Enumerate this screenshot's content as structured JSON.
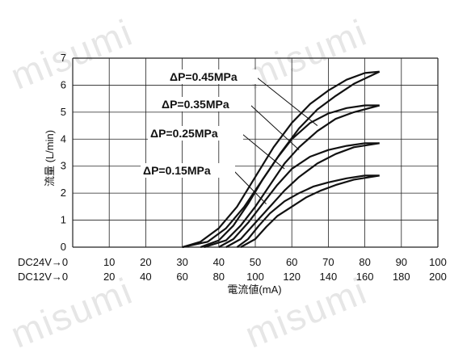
{
  "watermark": "misumi",
  "chart_data": {
    "type": "line",
    "ylabel": "流量 (L/min)",
    "xlabel": "電流値(mA)",
    "ylim": [
      0,
      7
    ],
    "yticks": [
      0,
      1,
      2,
      3,
      4,
      5,
      6,
      7
    ],
    "xlim": [
      0,
      100
    ],
    "x_rows": [
      {
        "label": "DC24V→0",
        "ticks": [
          "10",
          "20",
          "30",
          "40",
          "50",
          "60",
          "70",
          "80",
          "90",
          "100"
        ]
      },
      {
        "label": "DC12V→0",
        "ticks": [
          "20",
          "40",
          "60",
          "80",
          "100",
          "120",
          "140",
          "160",
          "180",
          "200"
        ]
      }
    ],
    "grid": true,
    "series": [
      {
        "name": "ΔP=0.45MPa",
        "upper": [
          [
            30,
            0
          ],
          [
            35,
            0.2
          ],
          [
            40,
            0.7
          ],
          [
            45,
            1.5
          ],
          [
            50,
            2.6
          ],
          [
            55,
            3.7
          ],
          [
            60,
            4.6
          ],
          [
            65,
            5.3
          ],
          [
            70,
            5.8
          ],
          [
            75,
            6.2
          ],
          [
            80,
            6.45
          ],
          [
            84,
            6.5
          ]
        ],
        "lower": [
          [
            30,
            0
          ],
          [
            37,
            0.2
          ],
          [
            42,
            0.7
          ],
          [
            47,
            1.5
          ],
          [
            52,
            2.5
          ],
          [
            57,
            3.5
          ],
          [
            62,
            4.4
          ],
          [
            67,
            5.1
          ],
          [
            72,
            5.6
          ],
          [
            77,
            6.05
          ],
          [
            84,
            6.5
          ]
        ]
      },
      {
        "name": "ΔP=0.35MPa",
        "upper": [
          [
            35,
            0
          ],
          [
            40,
            0.25
          ],
          [
            44,
            0.8
          ],
          [
            48,
            1.6
          ],
          [
            52,
            2.5
          ],
          [
            56,
            3.3
          ],
          [
            60,
            4.0
          ],
          [
            65,
            4.6
          ],
          [
            70,
            4.95
          ],
          [
            75,
            5.15
          ],
          [
            80,
            5.25
          ],
          [
            84,
            5.25
          ]
        ],
        "lower": [
          [
            36,
            0
          ],
          [
            42,
            0.25
          ],
          [
            46,
            0.8
          ],
          [
            50,
            1.5
          ],
          [
            54,
            2.3
          ],
          [
            58,
            3.1
          ],
          [
            62,
            3.7
          ],
          [
            67,
            4.3
          ],
          [
            72,
            4.75
          ],
          [
            77,
            5.0
          ],
          [
            84,
            5.25
          ]
        ]
      },
      {
        "name": "ΔP=0.25MPa",
        "upper": [
          [
            40,
            0
          ],
          [
            44,
            0.3
          ],
          [
            48,
            0.9
          ],
          [
            52,
            1.6
          ],
          [
            56,
            2.3
          ],
          [
            60,
            2.9
          ],
          [
            65,
            3.35
          ],
          [
            70,
            3.6
          ],
          [
            75,
            3.75
          ],
          [
            80,
            3.85
          ],
          [
            84,
            3.85
          ]
        ],
        "lower": [
          [
            42,
            0
          ],
          [
            46,
            0.3
          ],
          [
            50,
            0.9
          ],
          [
            54,
            1.5
          ],
          [
            58,
            2.1
          ],
          [
            62,
            2.6
          ],
          [
            67,
            3.1
          ],
          [
            72,
            3.45
          ],
          [
            77,
            3.7
          ],
          [
            84,
            3.85
          ]
        ]
      },
      {
        "name": "ΔP=0.15MPa",
        "upper": [
          [
            45,
            0
          ],
          [
            48,
            0.3
          ],
          [
            51,
            0.8
          ],
          [
            54,
            1.25
          ],
          [
            58,
            1.7
          ],
          [
            62,
            2.0
          ],
          [
            66,
            2.25
          ],
          [
            70,
            2.4
          ],
          [
            75,
            2.55
          ],
          [
            80,
            2.65
          ],
          [
            84,
            2.65
          ]
        ],
        "lower": [
          [
            46,
            0
          ],
          [
            50,
            0.3
          ],
          [
            53,
            0.75
          ],
          [
            56,
            1.15
          ],
          [
            60,
            1.5
          ],
          [
            64,
            1.85
          ],
          [
            68,
            2.1
          ],
          [
            72,
            2.3
          ],
          [
            77,
            2.5
          ],
          [
            84,
            2.65
          ]
        ]
      }
    ],
    "annotations": [
      "ΔP=0.45MPa",
      "ΔP=0.35MPa",
      "ΔP=0.25MPa",
      "ΔP=0.15MPa"
    ]
  }
}
